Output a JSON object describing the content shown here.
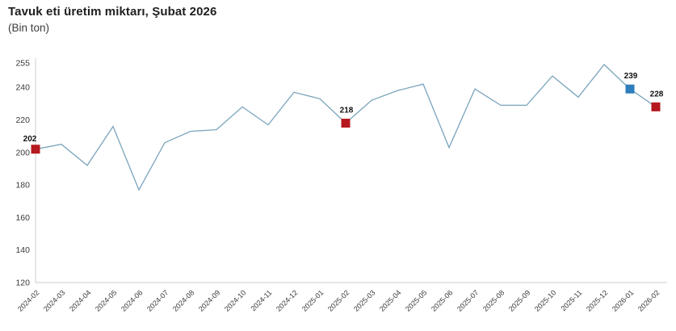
{
  "header": {
    "title": "Tavuk eti üretim miktarı, Şubat 2026",
    "subtitle": "(Bin ton)"
  },
  "chart_data": {
    "type": "line",
    "title": "Tavuk eti üretim miktarı, Şubat 2026",
    "subtitle": "(Bin ton)",
    "unit": "Bin ton",
    "categories": [
      "2024-02",
      "2024-03",
      "2024-04",
      "2024-05",
      "2024-06",
      "2024-07",
      "2024-08",
      "2024-09",
      "2024-10",
      "2024-11",
      "2024-12",
      "2025-01",
      "2025-02",
      "2025-03",
      "2025-04",
      "2025-05",
      "2025-06",
      "2025-07",
      "2025-08",
      "2025-09",
      "2025-10",
      "2025-11",
      "2025-12",
      "2026-01",
      "2026-02"
    ],
    "values": [
      202,
      205,
      192,
      216,
      177,
      206,
      213,
      214,
      228,
      217,
      237,
      233,
      218,
      232,
      238,
      242,
      203,
      239,
      229,
      229,
      247,
      234,
      254,
      239,
      228
    ],
    "y_ticks": [
      255,
      240,
      220,
      200,
      180,
      160,
      140,
      120
    ],
    "ylim": [
      120,
      255
    ],
    "grid": false,
    "legend": "none",
    "marked_points": [
      {
        "category": "2024-02",
        "value": 202,
        "label": "202",
        "color": "#b5181e"
      },
      {
        "category": "2025-02",
        "value": 218,
        "label": "218",
        "color": "#b5181e"
      },
      {
        "category": "2026-01",
        "value": 239,
        "label": "239",
        "color": "#2f7ebd"
      },
      {
        "category": "2026-02",
        "value": 228,
        "label": "228",
        "color": "#b5181e"
      }
    ],
    "colors": {
      "line": "#7aa4bc",
      "axis": "#cccccc",
      "tick_label": "#383838",
      "data_label": "#111111",
      "marker_red": "#b5181e",
      "marker_blue": "#2f7ebd"
    }
  }
}
